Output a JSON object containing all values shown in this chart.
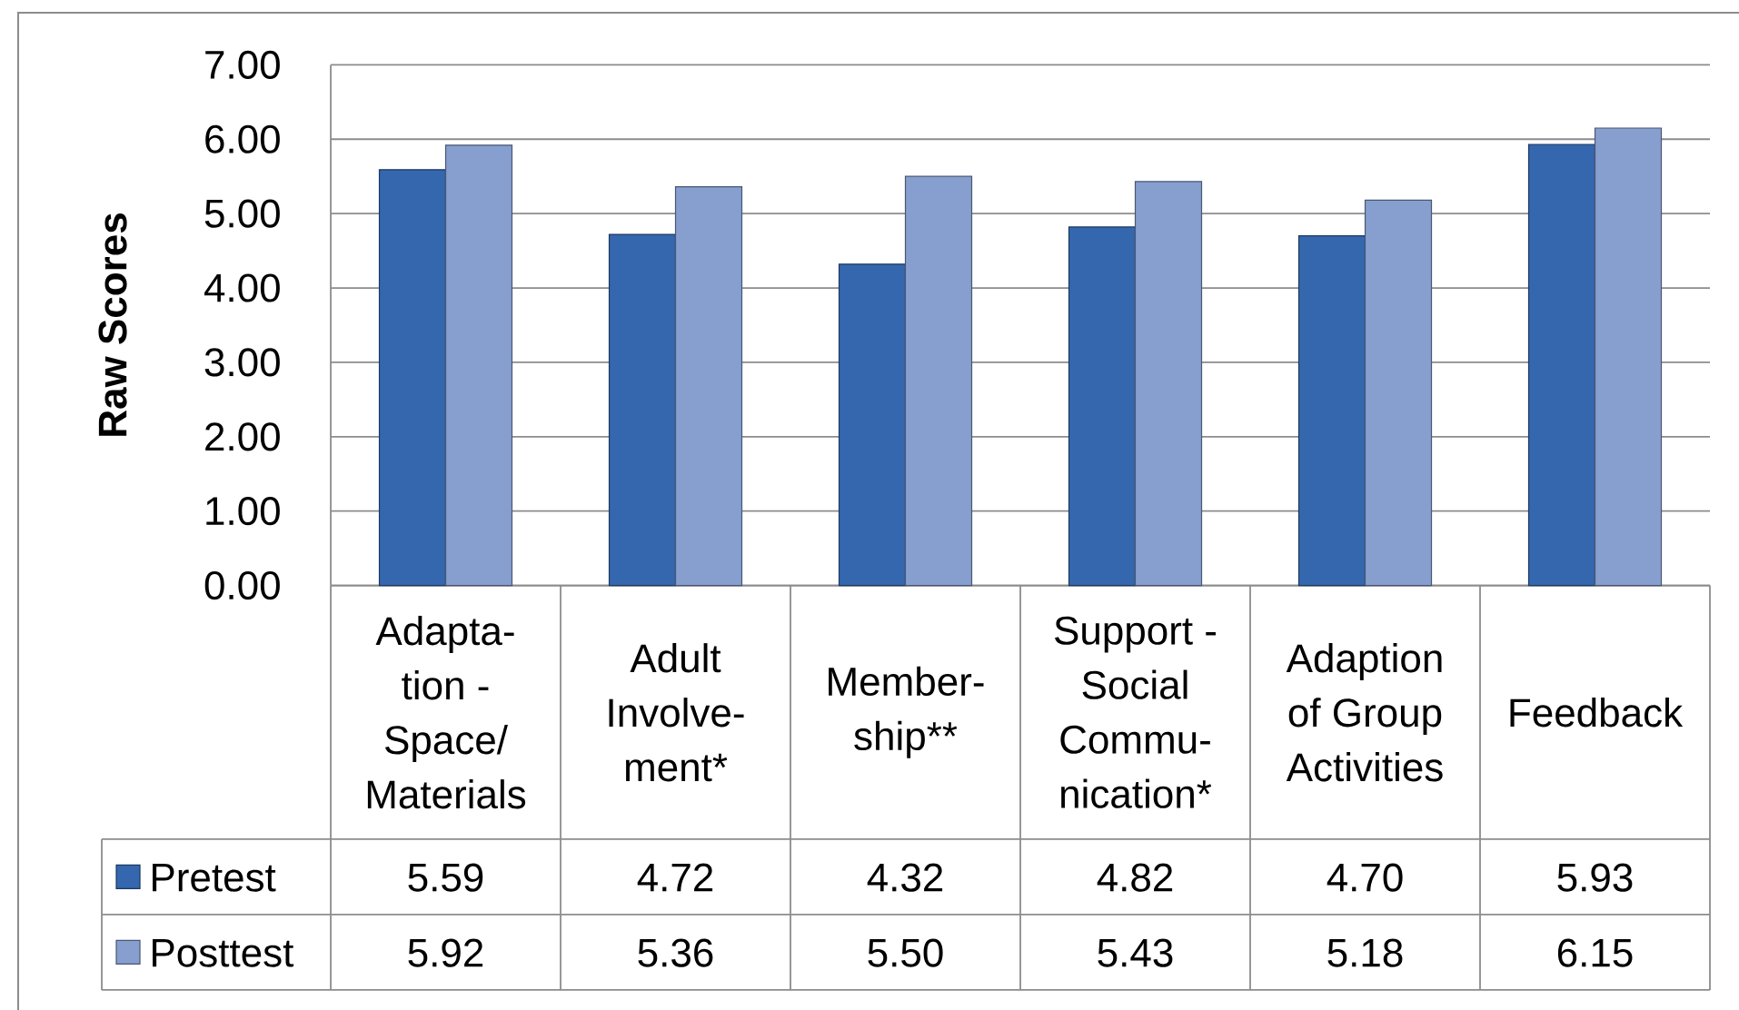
{
  "chart_data": {
    "type": "bar",
    "ylabel": "Raw Scores",
    "categories": [
      "Adapta- tion - Space/ Materials",
      "Adult Involve- ment*",
      "Member- ship**",
      "Support - Social Commu- nication*",
      "Adaption of Group Activities",
      "Feedback"
    ],
    "series": [
      {
        "name": "Pretest",
        "color": "#3467ae",
        "values": [
          5.59,
          4.72,
          4.32,
          4.82,
          4.7,
          5.93
        ],
        "value_labels": [
          "5.59",
          "4.72",
          "4.32",
          "4.82",
          "4.70",
          "5.93"
        ]
      },
      {
        "name": "Posttest",
        "color": "#869fcf",
        "values": [
          5.92,
          5.36,
          5.5,
          5.43,
          5.18,
          6.15
        ],
        "value_labels": [
          "5.92",
          "5.36",
          "5.50",
          "5.43",
          "5.18",
          "6.15"
        ]
      }
    ],
    "ylim": [
      0,
      7
    ],
    "yticks": [
      {
        "value": 0,
        "label": "0.00"
      },
      {
        "value": 1,
        "label": "1.00"
      },
      {
        "value": 2,
        "label": "2.00"
      },
      {
        "value": 3,
        "label": "3.00"
      },
      {
        "value": 4,
        "label": "4.00"
      },
      {
        "value": 5,
        "label": "5.00"
      },
      {
        "value": 6,
        "label": "6.00"
      },
      {
        "value": 7,
        "label": "7.00"
      }
    ],
    "grid": "y",
    "legend": "bottom left"
  }
}
